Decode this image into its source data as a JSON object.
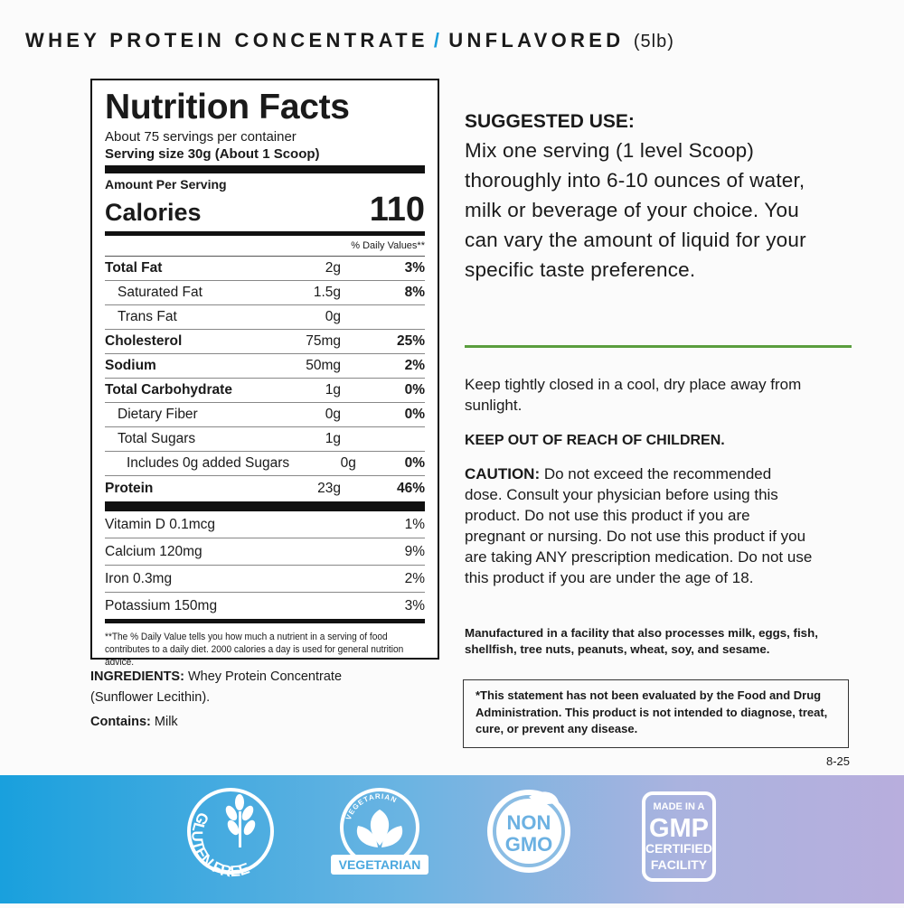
{
  "header": {
    "product": "WHEY PROTEIN CONCENTRATE",
    "separator": "/",
    "flavor": "UNFLAVORED",
    "size": "(5lb)"
  },
  "nutrition": {
    "title": "Nutrition Facts",
    "servings": "About 75 servings per container",
    "serving_size": "Serving size 30g (About 1 Scoop)",
    "amount_per_serving": "Amount Per Serving",
    "calories_label": "Calories",
    "calories": 110,
    "dv_header": "% Daily Values**",
    "rows": [
      [
        "Total Fat",
        "2g",
        "3%"
      ],
      [
        "Saturated Fat",
        "1.5g",
        "8%"
      ],
      [
        "Trans Fat",
        "0g",
        ""
      ],
      [
        "Cholesterol",
        "75mg",
        "25%"
      ],
      [
        "Sodium",
        "50mg",
        "2%"
      ],
      [
        "Total Carbohydrate",
        "1g",
        "0%"
      ],
      [
        "Dietary Fiber",
        "0g",
        "0%"
      ],
      [
        "Total Sugars",
        "1g",
        ""
      ],
      [
        "Includes 0g added Sugars",
        "0g",
        "0%"
      ],
      [
        "Protein",
        "23g",
        "46%"
      ]
    ],
    "vitamins": [
      [
        "Vitamin D 0.1mcg",
        "1%"
      ],
      [
        "Calcium 120mg",
        "9%"
      ],
      [
        "Iron 0.3mg",
        "2%"
      ],
      [
        "Potassium 150mg",
        "3%"
      ]
    ],
    "footnote": "**The % Daily Value tells you how much a nutrient in a  serving of food contributes to a daily diet. 2000 calories a day is used for general nutrition advice."
  },
  "ingredients": {
    "label": "INGREDIENTS:",
    "text": "Whey Protein Concentrate (Sunflower Lecithin).",
    "contains_label": "Contains:",
    "contains": "Milk"
  },
  "suggested_use": {
    "title": "SUGGESTED USE:",
    "text": "Mix one serving (1 level Scoop) thoroughly into 6-10 ounces of water, milk or beverage of your choice. You can vary the amount of liquid for your specific taste preference."
  },
  "storage": "Keep tightly closed in a cool, dry place away from sunlight.",
  "warning": "KEEP OUT OF REACH OF CHILDREN.",
  "caution": {
    "label": "CAUTION:",
    "text": "Do not exceed the recommended dose. Consult your physician before using this product. Do not use this product if you are pregnant or nursing. Do not use this product if you are taking ANY prescription medication. Do not use this product if you are under the age of 18."
  },
  "allergen": "Manufactured in a facility that also processes milk, eggs, fish, shellfish, tree nuts, peanuts, wheat, soy, and sesame.",
  "disclaimer": "*This statement has not been evaluated by the Food and Drug Administration. This product is not intended to diagnose, treat, cure, or prevent any disease.",
  "code": "8-25",
  "badges": {
    "gluten_free": "GLUTEN FREE",
    "vegetarian_top": "VEGETARIAN",
    "vegetarian_banner": "VEGETARIAN",
    "non": "NON",
    "gmo": "GMO",
    "gmp_made": "MADE IN A",
    "gmp": "GMP",
    "gmp_certified": "CERTIFIED",
    "gmp_facility": "FACILITY"
  }
}
